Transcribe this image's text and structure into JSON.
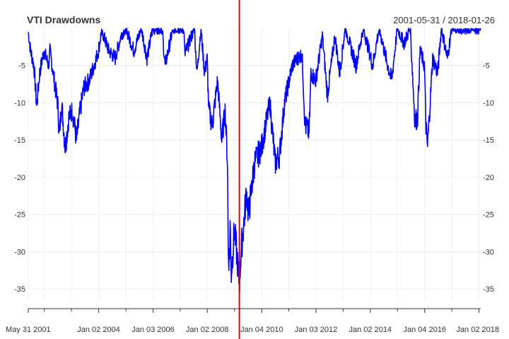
{
  "header": {
    "title": "VTI Drawdowns",
    "date_range": "2001-05-31 / 2018-01-26"
  },
  "chart_data": {
    "type": "line",
    "title": "VTI Drawdowns",
    "xlabel": "",
    "ylabel": "",
    "ylim": [
      -36.5,
      0
    ],
    "yticks": [
      -5,
      -10,
      -15,
      -20,
      -25,
      -30,
      -35
    ],
    "xlim": [
      "2001-05-31",
      "2018-01-26"
    ],
    "xtick_labels": [
      {
        "date": "2001-05-31",
        "label": "May 31 2001"
      },
      {
        "date": "2004-01-02",
        "label": "Jan 02 2004"
      },
      {
        "date": "2006-01-03",
        "label": "Jan 03 2006"
      },
      {
        "date": "2008-01-02",
        "label": "Jan 02 2008"
      },
      {
        "date": "2010-01-04",
        "label": "Jan 04 2010"
      },
      {
        "date": "2012-01-03",
        "label": "Jan 03 2012"
      },
      {
        "date": "2014-01-02",
        "label": "Jan 02 2014"
      },
      {
        "date": "2016-01-04",
        "label": "Jan 04 2016"
      },
      {
        "date": "2018-01-02",
        "label": "Jan 02 2018"
      }
    ],
    "minor_ticks": [
      "2002-01-02",
      "2003-01-02",
      "2005-01-03",
      "2007-01-03",
      "2009-01-02",
      "2011-01-03",
      "2013-01-02",
      "2015-01-02",
      "2017-01-03"
    ],
    "event_line": {
      "date": "2009-03-09",
      "color": "#e00000"
    },
    "grid": true,
    "series": [
      {
        "color": "#0000ff",
        "points": [
          [
            "2001-05-31",
            -0.5
          ],
          [
            "2001-06-30",
            -3
          ],
          [
            "2001-08-15",
            -5
          ],
          [
            "2001-09-21",
            -10.5
          ],
          [
            "2001-10-31",
            -6
          ],
          [
            "2001-12-28",
            -3
          ],
          [
            "2002-02-28",
            -5
          ],
          [
            "2002-03-19",
            -3
          ],
          [
            "2002-05-15",
            -7
          ],
          [
            "2002-06-30",
            -10
          ],
          [
            "2002-07-23",
            -14.5
          ],
          [
            "2002-08-22",
            -10
          ],
          [
            "2002-10-09",
            -16
          ],
          [
            "2002-11-27",
            -12
          ],
          [
            "2003-01-14",
            -11
          ],
          [
            "2003-03-11",
            -15
          ],
          [
            "2003-04-30",
            -11
          ],
          [
            "2003-06-16",
            -8
          ],
          [
            "2003-08-29",
            -7
          ],
          [
            "2003-10-31",
            -5
          ],
          [
            "2003-12-31",
            -3
          ],
          [
            "2004-02-11",
            -0.3
          ],
          [
            "2004-05-17",
            -3
          ],
          [
            "2004-08-12",
            -4
          ],
          [
            "2004-10-29",
            -1
          ],
          [
            "2004-12-30",
            0
          ],
          [
            "2005-04-20",
            -3
          ],
          [
            "2005-07-29",
            0
          ],
          [
            "2005-10-13",
            -4
          ],
          [
            "2005-12-30",
            0
          ],
          [
            "2006-05-05",
            0
          ],
          [
            "2006-06-13",
            -5
          ],
          [
            "2006-09-29",
            0
          ],
          [
            "2007-02-20",
            0
          ],
          [
            "2007-03-05",
            -3.5
          ],
          [
            "2007-07-13",
            0
          ],
          [
            "2007-08-16",
            -6
          ],
          [
            "2007-10-09",
            0
          ],
          [
            "2007-11-26",
            -6
          ],
          [
            "2007-12-31",
            -4
          ],
          [
            "2008-01-22",
            -11
          ],
          [
            "2008-03-10",
            -13
          ],
          [
            "2008-05-19",
            -7
          ],
          [
            "2008-07-15",
            -15
          ],
          [
            "2008-08-29",
            -11
          ],
          [
            "2008-09-30",
            -18
          ],
          [
            "2008-10-10",
            -30
          ],
          [
            "2008-10-27",
            -31
          ],
          [
            "2008-11-04",
            -26
          ],
          [
            "2008-11-20",
            -33
          ],
          [
            "2008-12-31",
            -27
          ],
          [
            "2009-01-30",
            -30
          ],
          [
            "2009-03-09",
            -34.5
          ],
          [
            "2009-03-31",
            -30
          ],
          [
            "2009-04-30",
            -27
          ],
          [
            "2009-06-12",
            -22
          ],
          [
            "2009-07-10",
            -25
          ],
          [
            "2009-09-30",
            -18
          ],
          [
            "2009-12-31",
            -16
          ],
          [
            "2010-04-23",
            -10
          ],
          [
            "2010-07-02",
            -18
          ],
          [
            "2010-08-31",
            -17
          ],
          [
            "2010-11-05",
            -10
          ],
          [
            "2011-02-18",
            -5
          ],
          [
            "2011-04-29",
            -4
          ],
          [
            "2011-06-30",
            -3.5
          ],
          [
            "2011-08-08",
            -13
          ],
          [
            "2011-10-03",
            -14
          ],
          [
            "2011-10-27",
            -6
          ],
          [
            "2011-12-30",
            -7
          ],
          [
            "2012-03-30",
            -1
          ],
          [
            "2012-06-04",
            -9
          ],
          [
            "2012-09-14",
            -1
          ],
          [
            "2012-11-15",
            -6
          ],
          [
            "2013-01-31",
            0
          ],
          [
            "2013-06-24",
            -5
          ],
          [
            "2013-09-30",
            0
          ],
          [
            "2014-02-03",
            -5
          ],
          [
            "2014-04-30",
            0
          ],
          [
            "2014-08-01",
            -4
          ],
          [
            "2014-10-15",
            -7
          ],
          [
            "2014-12-31",
            0
          ],
          [
            "2015-03-31",
            -2
          ],
          [
            "2015-06-23",
            0
          ],
          [
            "2015-08-25",
            -12.5
          ],
          [
            "2015-09-29",
            -12
          ],
          [
            "2015-11-03",
            -3
          ],
          [
            "2015-12-31",
            -5
          ],
          [
            "2016-01-20",
            -13
          ],
          [
            "2016-02-11",
            -16
          ],
          [
            "2016-04-20",
            -4
          ],
          [
            "2016-06-27",
            -6
          ],
          [
            "2016-08-15",
            0
          ],
          [
            "2016-11-04",
            -4
          ],
          [
            "2016-12-30",
            0
          ],
          [
            "2017-06-30",
            0
          ],
          [
            "2018-01-26",
            0
          ]
        ]
      }
    ]
  }
}
